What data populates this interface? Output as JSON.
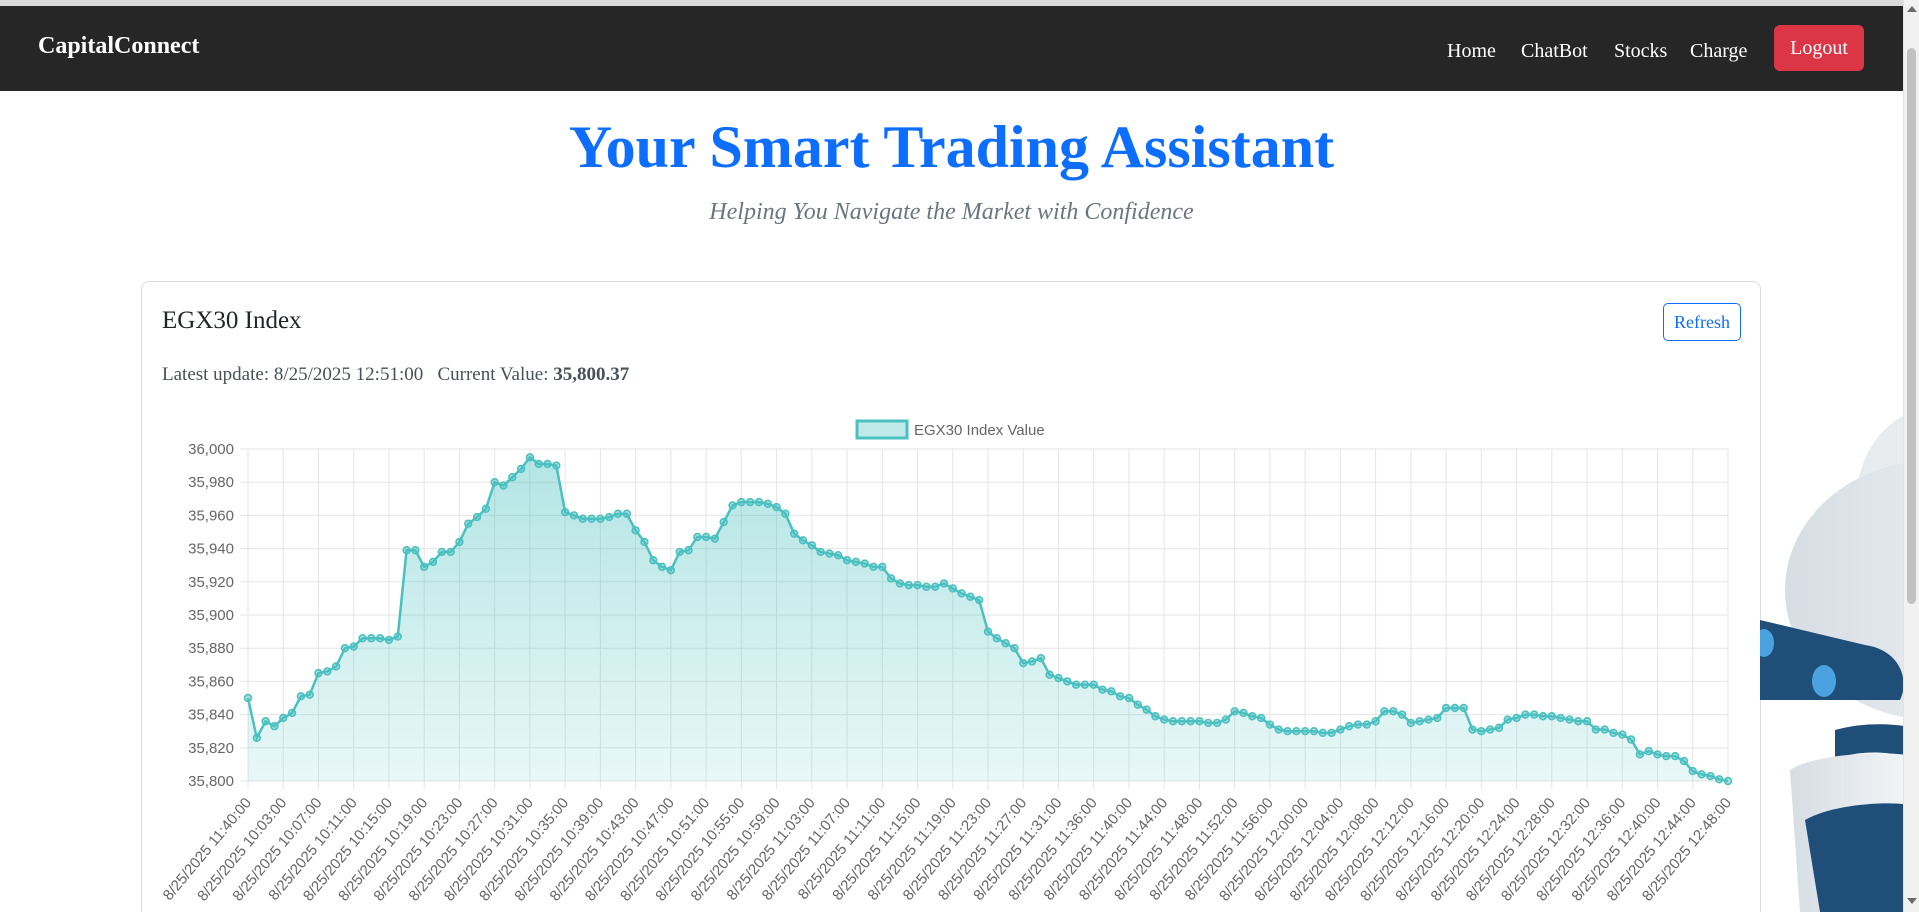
{
  "navbar": {
    "brand": "CapitalConnect",
    "links": [
      {
        "label": "Home"
      },
      {
        "label": "ChatBot"
      },
      {
        "label": "Stocks"
      },
      {
        "label": "Charge"
      }
    ],
    "logout_label": "Logout"
  },
  "hero": {
    "title": "Your Smart Trading Assistant",
    "subtitle": "Helping You Navigate the Market with Confidence"
  },
  "card": {
    "title": "EGX30 Index",
    "refresh_label": "Refresh",
    "latest_update_label": "Latest update:",
    "latest_update_value": "8/25/2025 12:51:00",
    "current_value_label": "Current Value:",
    "current_value": "35,800.37"
  },
  "colors": {
    "navbar_bg": "#262626",
    "accent_blue": "#0d6efd",
    "logout_red": "#dc3545",
    "series_line": "#4bc0c0"
  },
  "chart_data": {
    "type": "area",
    "legend": {
      "position": "top",
      "entries": [
        "EGX30 Index Value"
      ]
    },
    "series": [
      {
        "name": "EGX30 Index Value",
        "values": [
          35850,
          35826,
          35836,
          35833,
          35838,
          35841,
          35851,
          35852,
          35865,
          35866,
          35869,
          35880,
          35881,
          35886,
          35886,
          35886,
          35885,
          35887,
          35939,
          35939,
          35929,
          35932,
          35938,
          35938,
          35944,
          35955,
          35959,
          35964,
          35980,
          35978,
          35983,
          35988,
          35995,
          35991,
          35991,
          35990,
          35962,
          35960,
          35958,
          35958,
          35958,
          35959,
          35961,
          35961,
          35951,
          35944,
          35933,
          35929,
          35927,
          35938,
          35939,
          35947,
          35947,
          35946,
          35956,
          35966,
          35968,
          35968,
          35968,
          35967,
          35965,
          35961,
          35949,
          35945,
          35942,
          35938,
          35937,
          35936,
          35933,
          35932,
          35931,
          35929,
          35929,
          35922,
          35919,
          35918,
          35918,
          35917,
          35917,
          35919,
          35916,
          35913,
          35911,
          35909,
          35890,
          35886,
          35883,
          35880,
          35871,
          35872,
          35874,
          35864,
          35862,
          35860,
          35858,
          35858,
          35858,
          35855,
          35854,
          35851,
          35850,
          35846,
          35843,
          35839,
          35837,
          35836,
          35836,
          35836,
          35836,
          35835,
          35835,
          35837,
          35842,
          35841,
          35839,
          35838,
          35834,
          35831,
          35830,
          35830,
          35830,
          35830,
          35829,
          35829,
          35831,
          35833,
          35834,
          35834,
          35836,
          35842,
          35842,
          35840,
          35835,
          35836,
          35837,
          35838,
          35844,
          35844,
          35844,
          35831,
          35830,
          35831,
          35832,
          35837,
          35838,
          35840,
          35840,
          35839,
          35839,
          35838,
          35837,
          35836,
          35836,
          35831,
          35831,
          35829,
          35828,
          35825,
          35816,
          35818,
          35816,
          35815,
          35815,
          35812,
          35806,
          35804,
          35803,
          35801,
          35800
        ]
      }
    ],
    "x_tick_labels": [
      "8/25/2025 11:40:00",
      "8/25/2025 10:03:00",
      "8/25/2025 10:07:00",
      "8/25/2025 10:11:00",
      "8/25/2025 10:15:00",
      "8/25/2025 10:19:00",
      "8/25/2025 10:23:00",
      "8/25/2025 10:27:00",
      "8/25/2025 10:31:00",
      "8/25/2025 10:35:00",
      "8/25/2025 10:39:00",
      "8/25/2025 10:43:00",
      "8/25/2025 10:47:00",
      "8/25/2025 10:51:00",
      "8/25/2025 10:55:00",
      "8/25/2025 10:59:00",
      "8/25/2025 11:03:00",
      "8/25/2025 11:07:00",
      "8/25/2025 11:11:00",
      "8/25/2025 11:15:00",
      "8/25/2025 11:19:00",
      "8/25/2025 11:23:00",
      "8/25/2025 11:27:00",
      "8/25/2025 11:31:00",
      "8/25/2025 11:36:00",
      "8/25/2025 11:40:00",
      "8/25/2025 11:44:00",
      "8/25/2025 11:48:00",
      "8/25/2025 11:52:00",
      "8/25/2025 11:56:00",
      "8/25/2025 12:00:00",
      "8/25/2025 12:04:00",
      "8/25/2025 12:08:00",
      "8/25/2025 12:12:00",
      "8/25/2025 12:16:00",
      "8/25/2025 12:20:00",
      "8/25/2025 12:24:00",
      "8/25/2025 12:28:00",
      "8/25/2025 12:32:00",
      "8/25/2025 12:36:00",
      "8/25/2025 12:40:00",
      "8/25/2025 12:44:00",
      "8/25/2025 12:48:00"
    ],
    "y_ticks": [
      "36,000",
      "35,980",
      "35,960",
      "35,940",
      "35,920",
      "35,900",
      "35,880",
      "35,860",
      "35,840",
      "35,820",
      "35,800"
    ],
    "ylim": [
      35800,
      36000
    ],
    "grid": true
  }
}
